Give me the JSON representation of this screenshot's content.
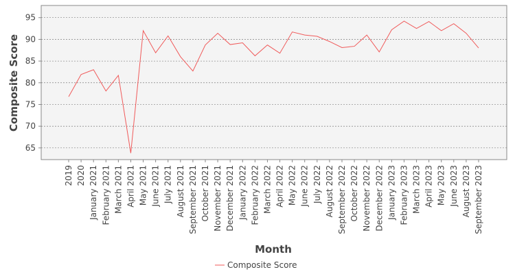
{
  "chart_data": {
    "type": "line",
    "x_label": "Month",
    "y_label": "Composite Score",
    "categories": [
      "2019",
      "2020",
      "January 2021",
      "February 2021",
      "March 2021",
      "April 2021",
      "May 2021",
      "June 2021",
      "July 2021",
      "August 2021",
      "September 2021",
      "October 2021",
      "November 2021",
      "December 2021",
      "January 2022",
      "February 2022",
      "March 2022",
      "April 2022",
      "May 2022",
      "June 2022",
      "July 2022",
      "August 2022",
      "September 2022",
      "October 2022",
      "November 2022",
      "December 2022",
      "January 2023",
      "February 2023",
      "March 2023",
      "April 2023",
      "May 2023",
      "June 2023",
      "August 2023",
      "September 2023"
    ],
    "series": [
      {
        "name": "Composite Score",
        "color": "#f05a5a",
        "values": [
          76.8,
          81.9,
          83.0,
          78.1,
          81.7,
          63.8,
          92.0,
          86.9,
          90.8,
          86.0,
          82.7,
          88.7,
          91.4,
          88.8,
          89.2,
          86.2,
          88.7,
          86.8,
          91.7,
          91.0,
          90.7,
          89.5,
          88.1,
          88.4,
          91.0,
          87.1,
          92.2,
          94.2,
          92.5,
          94.1,
          92.0,
          93.6,
          91.4,
          88.0
        ]
      }
    ],
    "ylim": [
      62.3,
      97.8
    ],
    "yticks": [
      65,
      70,
      75,
      80,
      85,
      90,
      95
    ],
    "grid": true,
    "legend": "bottom"
  }
}
